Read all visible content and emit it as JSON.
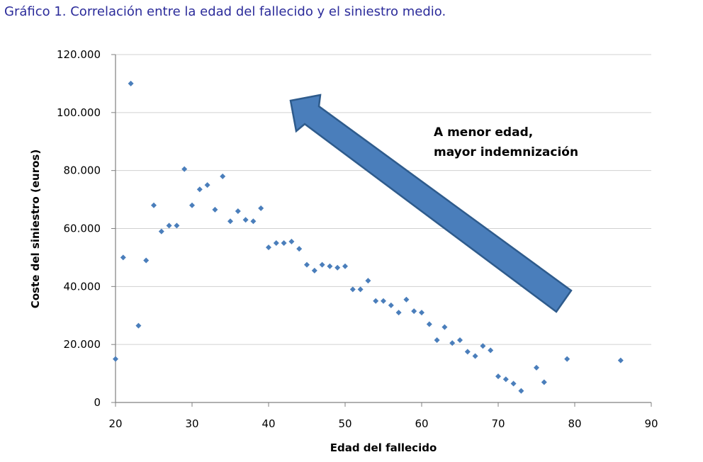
{
  "figure": {
    "title": "Gráfico 1. Correlación entre la edad del fallecido y el siniestro medio."
  },
  "chart_data": {
    "type": "scatter",
    "title": "Gráfico 1. Correlación entre la edad del fallecido y el siniestro medio.",
    "xlabel": "Edad del fallecido",
    "ylabel": "Coste del siniestro (euros)",
    "xlim": [
      20,
      90
    ],
    "ylim": [
      0,
      120000
    ],
    "x_ticks": [
      20,
      30,
      40,
      50,
      60,
      70,
      80,
      90
    ],
    "x_tick_labels": [
      "20",
      "30",
      "40",
      "50",
      "60",
      "70",
      "80",
      "90"
    ],
    "y_ticks": [
      0,
      20000,
      40000,
      60000,
      80000,
      100000,
      120000
    ],
    "y_tick_labels": [
      "0",
      "20.000",
      "40.000",
      "60.000",
      "80.000",
      "100.000",
      "120.000"
    ],
    "grid": "horizontal",
    "point_color": "#4a7ebb",
    "arrow_color": "#4a7ebb",
    "annotation": {
      "lines": [
        "A  menor edad,",
        "mayor indemnización"
      ]
    },
    "series": [
      {
        "x": [
          20,
          21,
          22,
          23,
          24,
          25,
          26,
          27,
          28,
          29,
          30,
          31,
          32,
          33,
          34,
          35,
          36,
          37,
          38,
          39,
          40,
          41,
          42,
          43,
          44,
          45,
          46,
          47,
          48,
          49,
          50,
          51,
          52,
          53,
          54,
          55,
          56,
          57,
          58,
          59,
          60,
          61,
          62,
          63,
          64,
          65,
          66,
          67,
          68,
          69,
          70,
          71,
          72,
          73,
          75,
          76,
          79,
          86
        ],
        "y": [
          15000,
          50000,
          110000,
          26500,
          49000,
          68000,
          59000,
          61000,
          61000,
          80500,
          68000,
          73500,
          75000,
          66500,
          78000,
          62500,
          66000,
          63000,
          62500,
          67000,
          53500,
          55000,
          55000,
          55500,
          53000,
          47500,
          45500,
          47500,
          47000,
          46500,
          47000,
          39000,
          39000,
          42000,
          35000,
          35000,
          33500,
          31000,
          35500,
          31500,
          31000,
          27000,
          21500,
          26000,
          20500,
          21500,
          17500,
          16000,
          19500,
          18000,
          9000,
          8000,
          6500,
          4000,
          12000,
          7000,
          15000,
          14500
        ]
      }
    ]
  }
}
